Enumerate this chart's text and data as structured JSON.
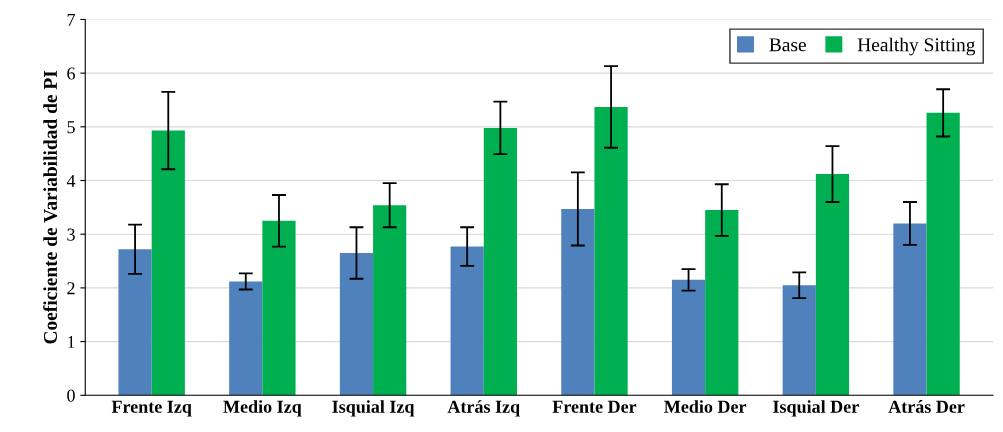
{
  "chart_data": {
    "type": "bar",
    "ylabel": "Coeficiente de Variabilidad de PI",
    "categories": [
      "Frente Izq",
      "Medio Izq",
      "Isquial Izq",
      "Atrás Izq",
      "Frente Der",
      "Medio Der",
      "Isquial Der",
      "Atrás Der"
    ],
    "series": [
      {
        "name": "Base",
        "color": "#4f81bd",
        "values": [
          2.72,
          2.12,
          2.65,
          2.77,
          3.47,
          2.15,
          2.05,
          3.2
        ],
        "errors": [
          0.46,
          0.15,
          0.48,
          0.36,
          0.68,
          0.2,
          0.24,
          0.4
        ]
      },
      {
        "name": "Healthy Sitting",
        "color": "#00b050",
        "values": [
          4.93,
          3.25,
          3.54,
          4.98,
          5.37,
          3.45,
          4.12,
          5.26
        ],
        "errors": [
          0.72,
          0.48,
          0.41,
          0.49,
          0.76,
          0.48,
          0.52,
          0.44
        ]
      }
    ],
    "ylim": [
      0,
      7
    ],
    "yticks": [
      0,
      1,
      2,
      3,
      4,
      5,
      6,
      7
    ],
    "grid": "y",
    "legend": "top right"
  }
}
